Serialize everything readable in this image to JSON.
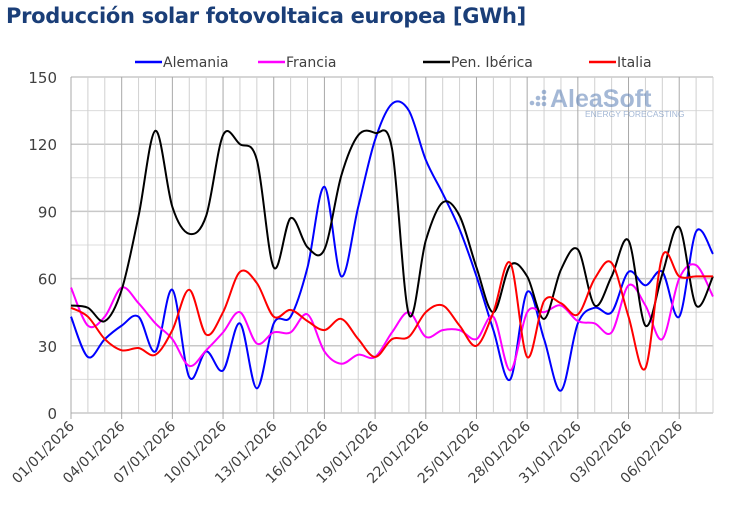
{
  "chart_data": {
    "type": "line",
    "title": "Producción solar fotovoltaica europea [GWh]",
    "xlabel": "",
    "ylabel": "",
    "ylim": [
      0,
      150
    ],
    "yticks": [
      0,
      30,
      60,
      90,
      120,
      150
    ],
    "x_start": "01/01/2026",
    "x_end": "08/02/2026",
    "xtick_labels": [
      "01/01/2026",
      "04/01/2026",
      "07/01/2026",
      "10/01/2026",
      "13/01/2026",
      "16/01/2026",
      "19/01/2026",
      "22/01/2026",
      "25/01/2026",
      "28/01/2026",
      "31/01/2026",
      "03/02/2026",
      "06/02/2026"
    ],
    "grid": true,
    "legend_position": "top",
    "series": [
      {
        "name": "Alemania",
        "color": "#0000ff",
        "values": [
          43,
          25,
          33,
          39,
          43,
          27.5,
          55,
          16,
          27.5,
          19,
          40,
          11,
          40,
          43,
          65,
          101,
          61,
          92,
          122,
          138,
          135,
          113,
          98,
          82,
          61,
          37,
          15,
          54,
          33,
          10,
          40,
          47,
          45,
          63,
          57,
          63,
          43,
          81,
          71
        ]
      },
      {
        "name": "Francia",
        "color": "#ff00ff",
        "values": [
          56,
          39,
          43,
          56,
          49,
          40,
          33,
          21,
          28,
          36,
          45,
          31,
          36,
          36,
          44,
          27.5,
          22,
          26,
          25,
          36,
          45,
          34,
          37,
          37,
          33,
          43,
          19,
          45,
          45,
          48,
          41,
          40,
          36,
          57,
          48,
          33,
          60,
          66,
          52
        ]
      },
      {
        "name": "Pen. Ibérica",
        "color": "#000000",
        "values": [
          48,
          47,
          41,
          55,
          88,
          126,
          92,
          80,
          88,
          124,
          120,
          113,
          65,
          87,
          74,
          73,
          106,
          124,
          125,
          118,
          44,
          77,
          94,
          88,
          65,
          45,
          66,
          61,
          42,
          64,
          73,
          48,
          61,
          77,
          39,
          62,
          83,
          48,
          61
        ]
      },
      {
        "name": "Italia",
        "color": "#ff0000",
        "values": [
          47,
          43,
          33,
          28,
          29,
          26,
          37,
          55,
          35,
          45,
          63,
          58,
          43,
          46,
          41,
          37,
          42,
          33,
          25,
          33,
          34,
          45,
          48,
          39,
          30,
          45,
          67,
          25,
          50,
          49,
          44,
          60,
          67,
          43,
          20,
          70,
          61,
          61,
          61
        ]
      }
    ]
  },
  "watermark": {
    "brand": "AleaSoft",
    "tagline": "ENERGY FORECASTING"
  }
}
